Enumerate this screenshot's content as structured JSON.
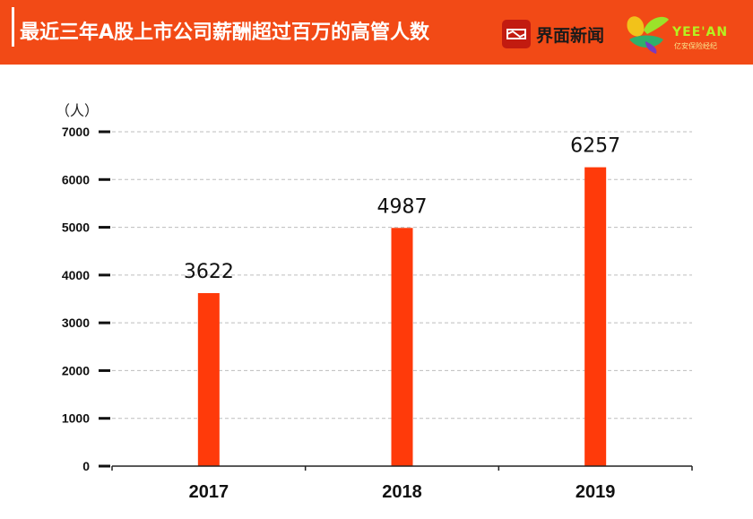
{
  "header": {
    "title": "最近三年A股上市公司薪酬超过百万的高管人数",
    "brand_primary": "界面新闻",
    "brand_secondary_name": "YEE'AN",
    "brand_secondary_sub": "亿安保险经纪",
    "background_color": "#f24a16"
  },
  "chart_data": {
    "type": "bar",
    "unit_label": "（人）",
    "categories": [
      "2017",
      "2018",
      "2019"
    ],
    "values": [
      3622,
      4987,
      6257
    ],
    "data_labels": [
      "3622",
      "4987",
      "6257"
    ],
    "yticks": [
      "0",
      "1000",
      "2000",
      "3000",
      "4000",
      "5000",
      "6000",
      "7000"
    ],
    "ylim": [
      0,
      7000
    ],
    "grid": true,
    "bar_color": "#ff3a0a",
    "xlabel": "",
    "ylabel": ""
  }
}
